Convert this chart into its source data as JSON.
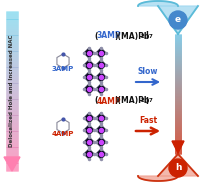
{
  "title_top": "(3AMP)(MA)Pb₂I₇",
  "title_top_bold": "3AMP",
  "title_bottom": "(4AMP)(MA)Pb₂I₇",
  "title_bottom_bold": "4AMP",
  "label_top": "3AMP",
  "label_bottom": "4AMP",
  "slow_text": "Slow",
  "fast_text": "Fast",
  "arrow_label": "Delocalized Hole and Increased NAC",
  "electron_label": "e",
  "hole_label": "h",
  "bg_color": "#ffffff",
  "left_arrow_top_color": "#7dd8ee",
  "left_arrow_bottom_color": "#ff80b0",
  "bar_top_color": "#60bce0",
  "bar_bottom_color": "#cc2000",
  "slow_color": "#3366cc",
  "fast_color": "#cc2200",
  "electron_circle_color": "#4488cc",
  "hole_circle_color": "#cc2200",
  "funnel_top_fill": "#a0d8f0",
  "funnel_bottom_fill": "#f0a090",
  "crystal_bg": "#0a0820",
  "crystal_dot": "#cc44ff",
  "crystal_corner": "#9090aa"
}
